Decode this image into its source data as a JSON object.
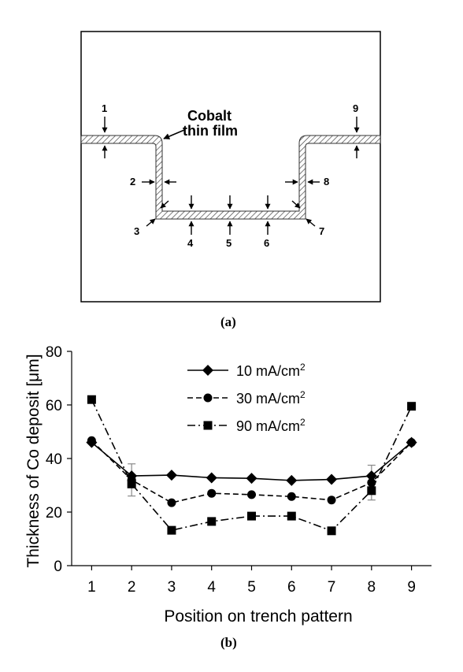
{
  "panel_a": {
    "film_label_line1": "Cobalt",
    "film_label_line2": "thin film",
    "positions": [
      "1",
      "2",
      "3",
      "4",
      "5",
      "6",
      "7",
      "8",
      "9"
    ],
    "caption": "(a)"
  },
  "panel_b": {
    "caption": "(b)"
  },
  "chart_data": {
    "type": "line",
    "x": [
      1,
      2,
      3,
      4,
      5,
      6,
      7,
      8,
      9
    ],
    "xlabel": "Position on trench pattern",
    "ylabel": "Thickness of Co deposit [μm]",
    "xlim": [
      0.5,
      9.5
    ],
    "ylim": [
      0,
      80
    ],
    "xticks": [
      "1",
      "2",
      "3",
      "4",
      "5",
      "6",
      "7",
      "8",
      "9"
    ],
    "yticks": [
      "0",
      "20",
      "40",
      "60",
      "80"
    ],
    "grid": false,
    "legend_position": "top-center",
    "series": [
      {
        "name": "10 mA/cm2",
        "label_main": "10 mA/cm",
        "label_sup": "2",
        "marker": "diamond",
        "line": "solid",
        "values": [
          46,
          33.5,
          33.8,
          32.8,
          32.6,
          31.8,
          32.2,
          33.5,
          46
        ]
      },
      {
        "name": "30 mA/cm2",
        "label_main": "30 mA/cm",
        "label_sup": "2",
        "marker": "circle",
        "line": "dashed",
        "values": [
          46.7,
          32,
          23.5,
          27,
          26.5,
          25.8,
          24.5,
          31,
          46
        ]
      },
      {
        "name": "90 mA/cm2",
        "label_main": "90 mA/cm",
        "label_sup": "2",
        "marker": "square",
        "line": "dashdot",
        "values": [
          62,
          30.5,
          13.2,
          16.5,
          18.5,
          18.5,
          13,
          28,
          59.5
        ]
      }
    ],
    "error_bars": {
      "x": [
        2,
        8
      ],
      "values": [
        6,
        6.5
      ]
    }
  }
}
